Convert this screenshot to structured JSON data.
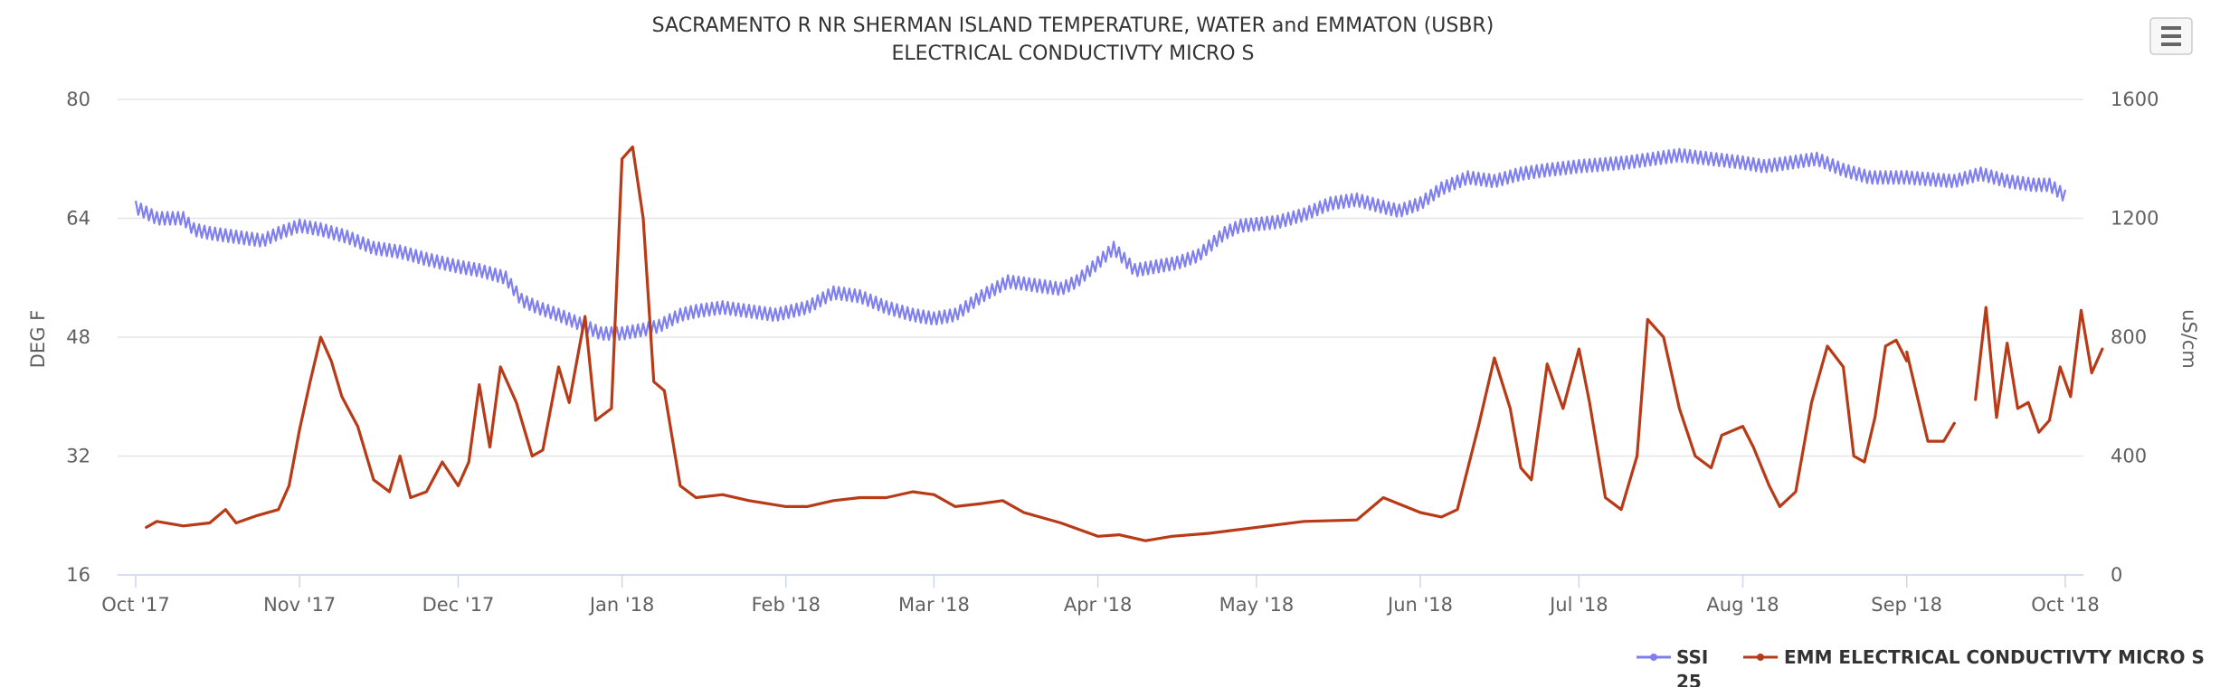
{
  "chart_data": {
    "type": "line",
    "title_line1": "SACRAMENTO R NR SHERMAN ISLAND TEMPERATURE, WATER and EMMATON (USBR)",
    "title_line2": "ELECTRICAL CONDUCTIVTY MICRO S",
    "x_ticks": [
      "Oct '17",
      "Nov '17",
      "Dec '17",
      "Jan '18",
      "Feb '18",
      "Mar '18",
      "Apr '18",
      "May '18",
      "Jun '18",
      "Jul '18",
      "Aug '18",
      "Sep '18",
      "Oct '18"
    ],
    "x_tick_dates": [
      "2017-10-01",
      "2017-11-01",
      "2017-12-01",
      "2018-01-01",
      "2018-02-01",
      "2018-03-01",
      "2018-04-01",
      "2018-05-01",
      "2018-06-01",
      "2018-07-01",
      "2018-08-01",
      "2018-09-01",
      "2018-10-01"
    ],
    "xlim": [
      "2017-10-01",
      "2018-10-01"
    ],
    "y_left": {
      "label": "DEG F",
      "min": 16,
      "max": 80,
      "ticks": [
        "16",
        "32",
        "48",
        "64",
        "80"
      ]
    },
    "y_right": {
      "label": "uS/cm",
      "min": 0,
      "max": 1600,
      "ticks": [
        "0",
        "400",
        "800",
        "1200",
        "1600"
      ]
    },
    "grid": true,
    "legend_position": "bottom-right",
    "series": [
      {
        "name": "SSI 25",
        "legend_line1": "SSI",
        "legend_line2": "25",
        "axis": "left",
        "color": "#7f7ff0",
        "points": [
          [
            "2017-10-01",
            65.5
          ],
          [
            "2017-10-05",
            64.0
          ],
          [
            "2017-10-10",
            64.0
          ],
          [
            "2017-10-12",
            62.5
          ],
          [
            "2017-10-15",
            62.0
          ],
          [
            "2017-10-20",
            61.5
          ],
          [
            "2017-10-25",
            61.0
          ],
          [
            "2017-10-28",
            62.0
          ],
          [
            "2017-11-01",
            63.0
          ],
          [
            "2017-11-05",
            62.5
          ],
          [
            "2017-11-10",
            61.5
          ],
          [
            "2017-11-15",
            60.0
          ],
          [
            "2017-11-20",
            59.5
          ],
          [
            "2017-11-25",
            58.5
          ],
          [
            "2017-12-01",
            57.5
          ],
          [
            "2017-12-05",
            57.0
          ],
          [
            "2017-12-10",
            56.0
          ],
          [
            "2017-12-13",
            53.0
          ],
          [
            "2017-12-16",
            52.0
          ],
          [
            "2017-12-20",
            51.0
          ],
          [
            "2017-12-25",
            49.5
          ],
          [
            "2017-12-28",
            48.5
          ],
          [
            "2018-01-01",
            48.5
          ],
          [
            "2018-01-05",
            49.0
          ],
          [
            "2018-01-08",
            49.5
          ],
          [
            "2018-01-12",
            51.0
          ],
          [
            "2018-01-15",
            51.5
          ],
          [
            "2018-01-20",
            52.0
          ],
          [
            "2018-01-25",
            51.5
          ],
          [
            "2018-01-30",
            51.0
          ],
          [
            "2018-02-05",
            52.0
          ],
          [
            "2018-02-10",
            54.0
          ],
          [
            "2018-02-15",
            53.5
          ],
          [
            "2018-02-20",
            52.0
          ],
          [
            "2018-02-25",
            51.0
          ],
          [
            "2018-03-01",
            50.5
          ],
          [
            "2018-03-05",
            51.0
          ],
          [
            "2018-03-10",
            53.5
          ],
          [
            "2018-03-15",
            55.5
          ],
          [
            "2018-03-20",
            55.0
          ],
          [
            "2018-03-25",
            54.5
          ],
          [
            "2018-03-28",
            55.5
          ],
          [
            "2018-04-01",
            58.0
          ],
          [
            "2018-04-04",
            60.0
          ],
          [
            "2018-04-08",
            57.0
          ],
          [
            "2018-04-12",
            57.5
          ],
          [
            "2018-04-16",
            58.0
          ],
          [
            "2018-04-20",
            59.0
          ],
          [
            "2018-04-25",
            62.0
          ],
          [
            "2018-04-28",
            63.0
          ],
          [
            "2018-05-05",
            63.5
          ],
          [
            "2018-05-10",
            64.5
          ],
          [
            "2018-05-15",
            66.0
          ],
          [
            "2018-05-20",
            66.5
          ],
          [
            "2018-05-25",
            65.5
          ],
          [
            "2018-05-28",
            65.0
          ],
          [
            "2018-06-01",
            66.0
          ],
          [
            "2018-06-05",
            68.0
          ],
          [
            "2018-06-10",
            69.5
          ],
          [
            "2018-06-15",
            69.0
          ],
          [
            "2018-06-20",
            70.0
          ],
          [
            "2018-06-25",
            70.5
          ],
          [
            "2018-07-01",
            71.0
          ],
          [
            "2018-07-10",
            71.5
          ],
          [
            "2018-07-20",
            72.5
          ],
          [
            "2018-08-01",
            71.5
          ],
          [
            "2018-08-05",
            71.0
          ],
          [
            "2018-08-10",
            71.5
          ],
          [
            "2018-08-15",
            72.0
          ],
          [
            "2018-08-20",
            70.5
          ],
          [
            "2018-08-25",
            69.5
          ],
          [
            "2018-09-01",
            69.5
          ],
          [
            "2018-09-10",
            69.0
          ],
          [
            "2018-09-15",
            70.0
          ],
          [
            "2018-09-20",
            69.0
          ],
          [
            "2018-09-25",
            68.5
          ],
          [
            "2018-09-28",
            68.5
          ],
          [
            "2018-10-01",
            67.0
          ]
        ]
      },
      {
        "name": "EMM ELECTRICAL CONDUCTIVTY MICRO S",
        "axis": "right",
        "color": "#b83a16",
        "segments": [
          [
            [
              "2017-10-03",
              160
            ],
            [
              "2017-10-05",
              180
            ],
            [
              "2017-10-10",
              165
            ],
            [
              "2017-10-15",
              175
            ],
            [
              "2017-10-18",
              220
            ],
            [
              "2017-10-20",
              175
            ],
            [
              "2017-10-24",
              200
            ],
            [
              "2017-10-28",
              220
            ],
            [
              "2017-10-30",
              300
            ],
            [
              "2017-11-01",
              490
            ],
            [
              "2017-11-03",
              650
            ],
            [
              "2017-11-05",
              800
            ],
            [
              "2017-11-07",
              720
            ],
            [
              "2017-11-09",
              600
            ],
            [
              "2017-11-12",
              500
            ],
            [
              "2017-11-15",
              320
            ],
            [
              "2017-11-18",
              280
            ],
            [
              "2017-11-20",
              400
            ],
            [
              "2017-11-22",
              260
            ],
            [
              "2017-11-25",
              280
            ],
            [
              "2017-11-28",
              380
            ],
            [
              "2017-12-01",
              300
            ],
            [
              "2017-12-03",
              380
            ],
            [
              "2017-12-05",
              640
            ],
            [
              "2017-12-07",
              430
            ],
            [
              "2017-12-09",
              700
            ],
            [
              "2017-12-12",
              580
            ],
            [
              "2017-12-15",
              400
            ],
            [
              "2017-12-17",
              420
            ],
            [
              "2017-12-20",
              700
            ],
            [
              "2017-12-22",
              580
            ],
            [
              "2017-12-25",
              870
            ],
            [
              "2017-12-27",
              520
            ],
            [
              "2017-12-30",
              560
            ],
            [
              "2018-01-01",
              1400
            ],
            [
              "2018-01-03",
              1440
            ],
            [
              "2018-01-05",
              1200
            ],
            [
              "2018-01-07",
              650
            ],
            [
              "2018-01-09",
              620
            ],
            [
              "2018-01-12",
              300
            ],
            [
              "2018-01-15",
              260
            ],
            [
              "2018-01-20",
              270
            ],
            [
              "2018-01-25",
              250
            ],
            [
              "2018-02-01",
              230
            ],
            [
              "2018-02-05",
              230
            ],
            [
              "2018-02-10",
              250
            ],
            [
              "2018-02-15",
              260
            ],
            [
              "2018-02-20",
              260
            ],
            [
              "2018-02-25",
              280
            ],
            [
              "2018-03-01",
              270
            ],
            [
              "2018-03-05",
              230
            ],
            [
              "2018-03-10",
              240
            ],
            [
              "2018-03-14",
              250
            ],
            [
              "2018-03-18",
              210
            ],
            [
              "2018-03-25",
              175
            ],
            [
              "2018-04-01",
              130
            ],
            [
              "2018-04-05",
              135
            ],
            [
              "2018-04-10",
              115
            ],
            [
              "2018-04-15",
              130
            ],
            [
              "2018-04-22",
              140
            ],
            [
              "2018-05-01",
              160
            ],
            [
              "2018-05-10",
              180
            ],
            [
              "2018-05-20",
              185
            ],
            [
              "2018-05-25",
              260
            ],
            [
              "2018-06-01",
              210
            ],
            [
              "2018-06-05",
              195
            ],
            [
              "2018-06-08",
              220
            ],
            [
              "2018-06-12",
              500
            ],
            [
              "2018-06-15",
              730
            ],
            [
              "2018-06-18",
              560
            ],
            [
              "2018-06-20",
              360
            ],
            [
              "2018-06-22",
              320
            ],
            [
              "2018-06-25",
              710
            ],
            [
              "2018-06-28",
              560
            ],
            [
              "2018-07-01",
              760
            ],
            [
              "2018-07-03",
              580
            ],
            [
              "2018-07-06",
              260
            ],
            [
              "2018-07-09",
              220
            ],
            [
              "2018-07-12",
              400
            ],
            [
              "2018-07-14",
              860
            ],
            [
              "2018-07-17",
              800
            ],
            [
              "2018-07-20",
              560
            ],
            [
              "2018-07-23",
              400
            ],
            [
              "2018-07-26",
              360
            ],
            [
              "2018-07-28",
              470
            ],
            [
              "2018-08-01",
              500
            ],
            [
              "2018-08-03",
              430
            ],
            [
              "2018-08-06",
              300
            ],
            [
              "2018-08-08",
              230
            ],
            [
              "2018-08-11",
              280
            ],
            [
              "2018-08-14",
              580
            ],
            [
              "2018-08-17",
              770
            ],
            [
              "2018-08-20",
              700
            ],
            [
              "2018-08-22",
              400
            ],
            [
              "2018-08-24",
              380
            ],
            [
              "2018-08-26",
              530
            ],
            [
              "2018-08-28",
              770
            ],
            [
              "2018-08-30",
              790
            ],
            [
              "2018-09-01",
              720
            ]
          ],
          [
            [
              "2018-09-01",
              750
            ],
            [
              "2018-09-03",
              600
            ],
            [
              "2018-09-05",
              450
            ],
            [
              "2018-09-08",
              450
            ],
            [
              "2018-09-10",
              510
            ]
          ],
          [
            [
              "2018-09-14",
              590
            ],
            [
              "2018-09-16",
              900
            ],
            [
              "2018-09-18",
              530
            ],
            [
              "2018-09-20",
              780
            ],
            [
              "2018-09-22",
              560
            ],
            [
              "2018-09-24",
              580
            ],
            [
              "2018-09-26",
              480
            ],
            [
              "2018-09-28",
              520
            ],
            [
              "2018-09-30",
              700
            ],
            [
              "2018-10-02",
              600
            ],
            [
              "2018-10-04",
              890
            ],
            [
              "2018-10-06",
              680
            ],
            [
              "2018-10-08",
              760
            ]
          ]
        ]
      }
    ]
  }
}
